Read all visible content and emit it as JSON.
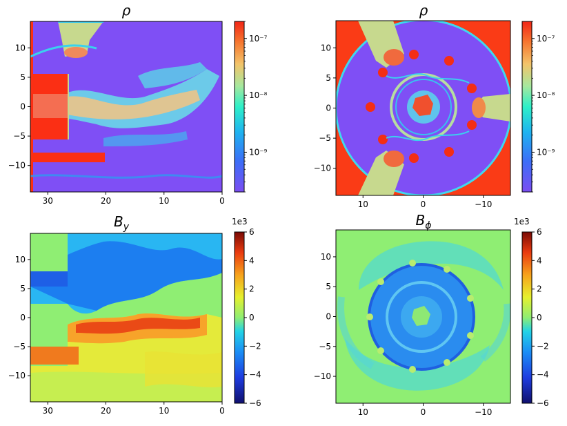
{
  "chart_data": [
    {
      "type": "heatmap",
      "panel": "top-left",
      "title": "ρ",
      "xlim": [
        33,
        0
      ],
      "ylim": [
        -14.5,
        14.5
      ],
      "xticks": [
        "30",
        "20",
        "10",
        "0"
      ],
      "xtick_values": [
        30,
        20,
        10,
        0
      ],
      "yticks": [
        "10",
        "5",
        "0",
        "−5",
        "−10"
      ],
      "ytick_values": [
        10,
        5,
        0,
        -5,
        -10
      ],
      "colorbar": {
        "scale": "log",
        "range": [
          2e-10,
          2e-07
        ],
        "ticks": [
          "10⁻⁷",
          "10⁻⁸",
          "10⁻⁹"
        ],
        "tick_values": [
          1e-07,
          1e-08,
          1e-09
        ],
        "colormap": "jet (turbo-like)"
      },
      "background_color": "#7f4ff5"
    },
    {
      "type": "heatmap",
      "panel": "top-right",
      "title": "ρ",
      "xlim": [
        14.5,
        -14.5
      ],
      "ylim": [
        -14.5,
        14.5
      ],
      "xticks": [
        "10",
        "0",
        "−10"
      ],
      "xtick_values": [
        10,
        0,
        -10
      ],
      "yticks": [
        "10",
        "5",
        "0",
        "−5",
        "−10"
      ],
      "ytick_values": [
        10,
        5,
        0,
        -5,
        -10
      ],
      "colorbar": {
        "scale": "log",
        "range": [
          2e-10,
          2e-07
        ],
        "ticks": [
          "10⁻⁷",
          "10⁻⁸",
          "10⁻⁹"
        ],
        "tick_values": [
          1e-07,
          1e-08,
          1e-09
        ],
        "colormap": "jet (turbo-like)"
      },
      "background_color": "#fa3b16"
    },
    {
      "type": "heatmap",
      "panel": "bottom-left",
      "title": "B",
      "title_subscript": "y",
      "xlim": [
        33,
        0
      ],
      "ylim": [
        -14.5,
        14.5
      ],
      "xticks": [
        "30",
        "20",
        "10",
        "0"
      ],
      "xtick_values": [
        30,
        20,
        10,
        0
      ],
      "yticks": [
        "10",
        "5",
        "0",
        "−5",
        "−10"
      ],
      "ytick_values": [
        10,
        5,
        0,
        -5,
        -10
      ],
      "colorbar": {
        "scale": "linear",
        "range": [
          -6,
          6
        ],
        "offset_label": "1e3",
        "ticks": [
          "6",
          "4",
          "2",
          "0",
          "−2",
          "−4",
          "−6"
        ],
        "tick_values": [
          6,
          4,
          2,
          0,
          -2,
          -4,
          -6
        ],
        "colormap": "turbo"
      },
      "background_color": "#8fee73"
    },
    {
      "type": "heatmap",
      "panel": "bottom-right",
      "title": "B",
      "title_subscript": "ϕ",
      "xlim": [
        14.5,
        -14.5
      ],
      "ylim": [
        -14.5,
        14.5
      ],
      "xticks": [
        "10",
        "0",
        "−10"
      ],
      "xtick_values": [
        10,
        0,
        -10
      ],
      "yticks": [
        "10",
        "5",
        "0",
        "−5",
        "−10"
      ],
      "ytick_values": [
        10,
        5,
        0,
        -5,
        -10
      ],
      "colorbar": {
        "scale": "linear",
        "range": [
          -6,
          6
        ],
        "offset_label": "1e3",
        "ticks": [
          "6",
          "4",
          "2",
          "0",
          "−2",
          "−4",
          "−6"
        ],
        "tick_values": [
          6,
          4,
          2,
          0,
          -2,
          -4,
          -6
        ],
        "colormap": "turbo"
      },
      "background_color": "#8fee73"
    }
  ]
}
